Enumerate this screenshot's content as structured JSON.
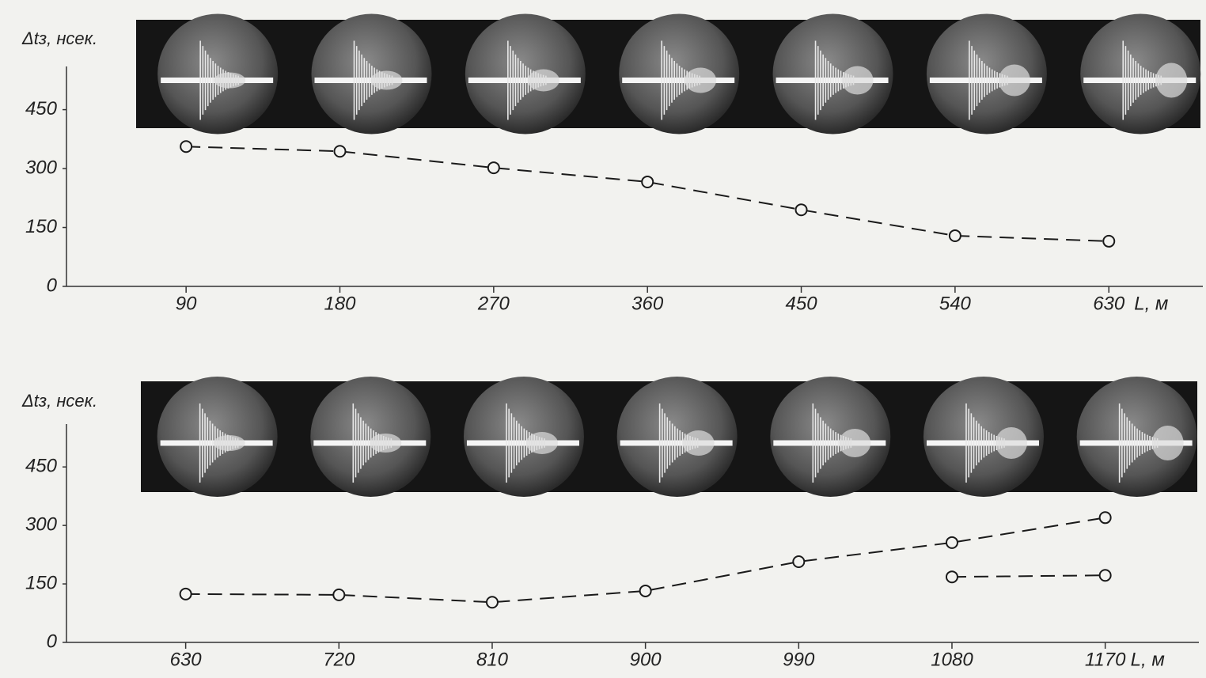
{
  "chart_data": [
    {
      "type": "line",
      "ylabel": "Δtз, нсек.",
      "xlabel": "L, м",
      "x": [
        90,
        180,
        270,
        360,
        450,
        540,
        630
      ],
      "series": [
        {
          "color": "#1a1a1a",
          "values": [
            356,
            344,
            302,
            266,
            195,
            129,
            115
          ]
        }
      ],
      "xlim": [
        20,
        685
      ],
      "xticks": [
        90,
        180,
        270,
        360,
        450,
        540,
        630
      ],
      "ylim": [
        0,
        560
      ],
      "yticks": [
        0,
        150,
        300,
        450
      ],
      "grid": false
    },
    {
      "type": "line",
      "ylabel": "Δtз, нсек.",
      "xlabel": "L, м",
      "x": [
        630,
        720,
        810,
        900,
        990,
        1080,
        1170
      ],
      "series": [
        {
          "color": "#1a1a1a",
          "values": [
            124,
            122,
            103,
            132,
            207,
            256,
            320
          ]
        },
        {
          "color": "#1a1a1a",
          "values": [
            null,
            null,
            null,
            null,
            null,
            168,
            172
          ]
        }
      ],
      "xlim": [
        560,
        1225
      ],
      "xticks": [
        630,
        720,
        810,
        900,
        990,
        1080,
        1170
      ],
      "ylim": [
        0,
        560
      ],
      "yticks": [
        0,
        150,
        300,
        450
      ],
      "grid": false
    }
  ]
}
